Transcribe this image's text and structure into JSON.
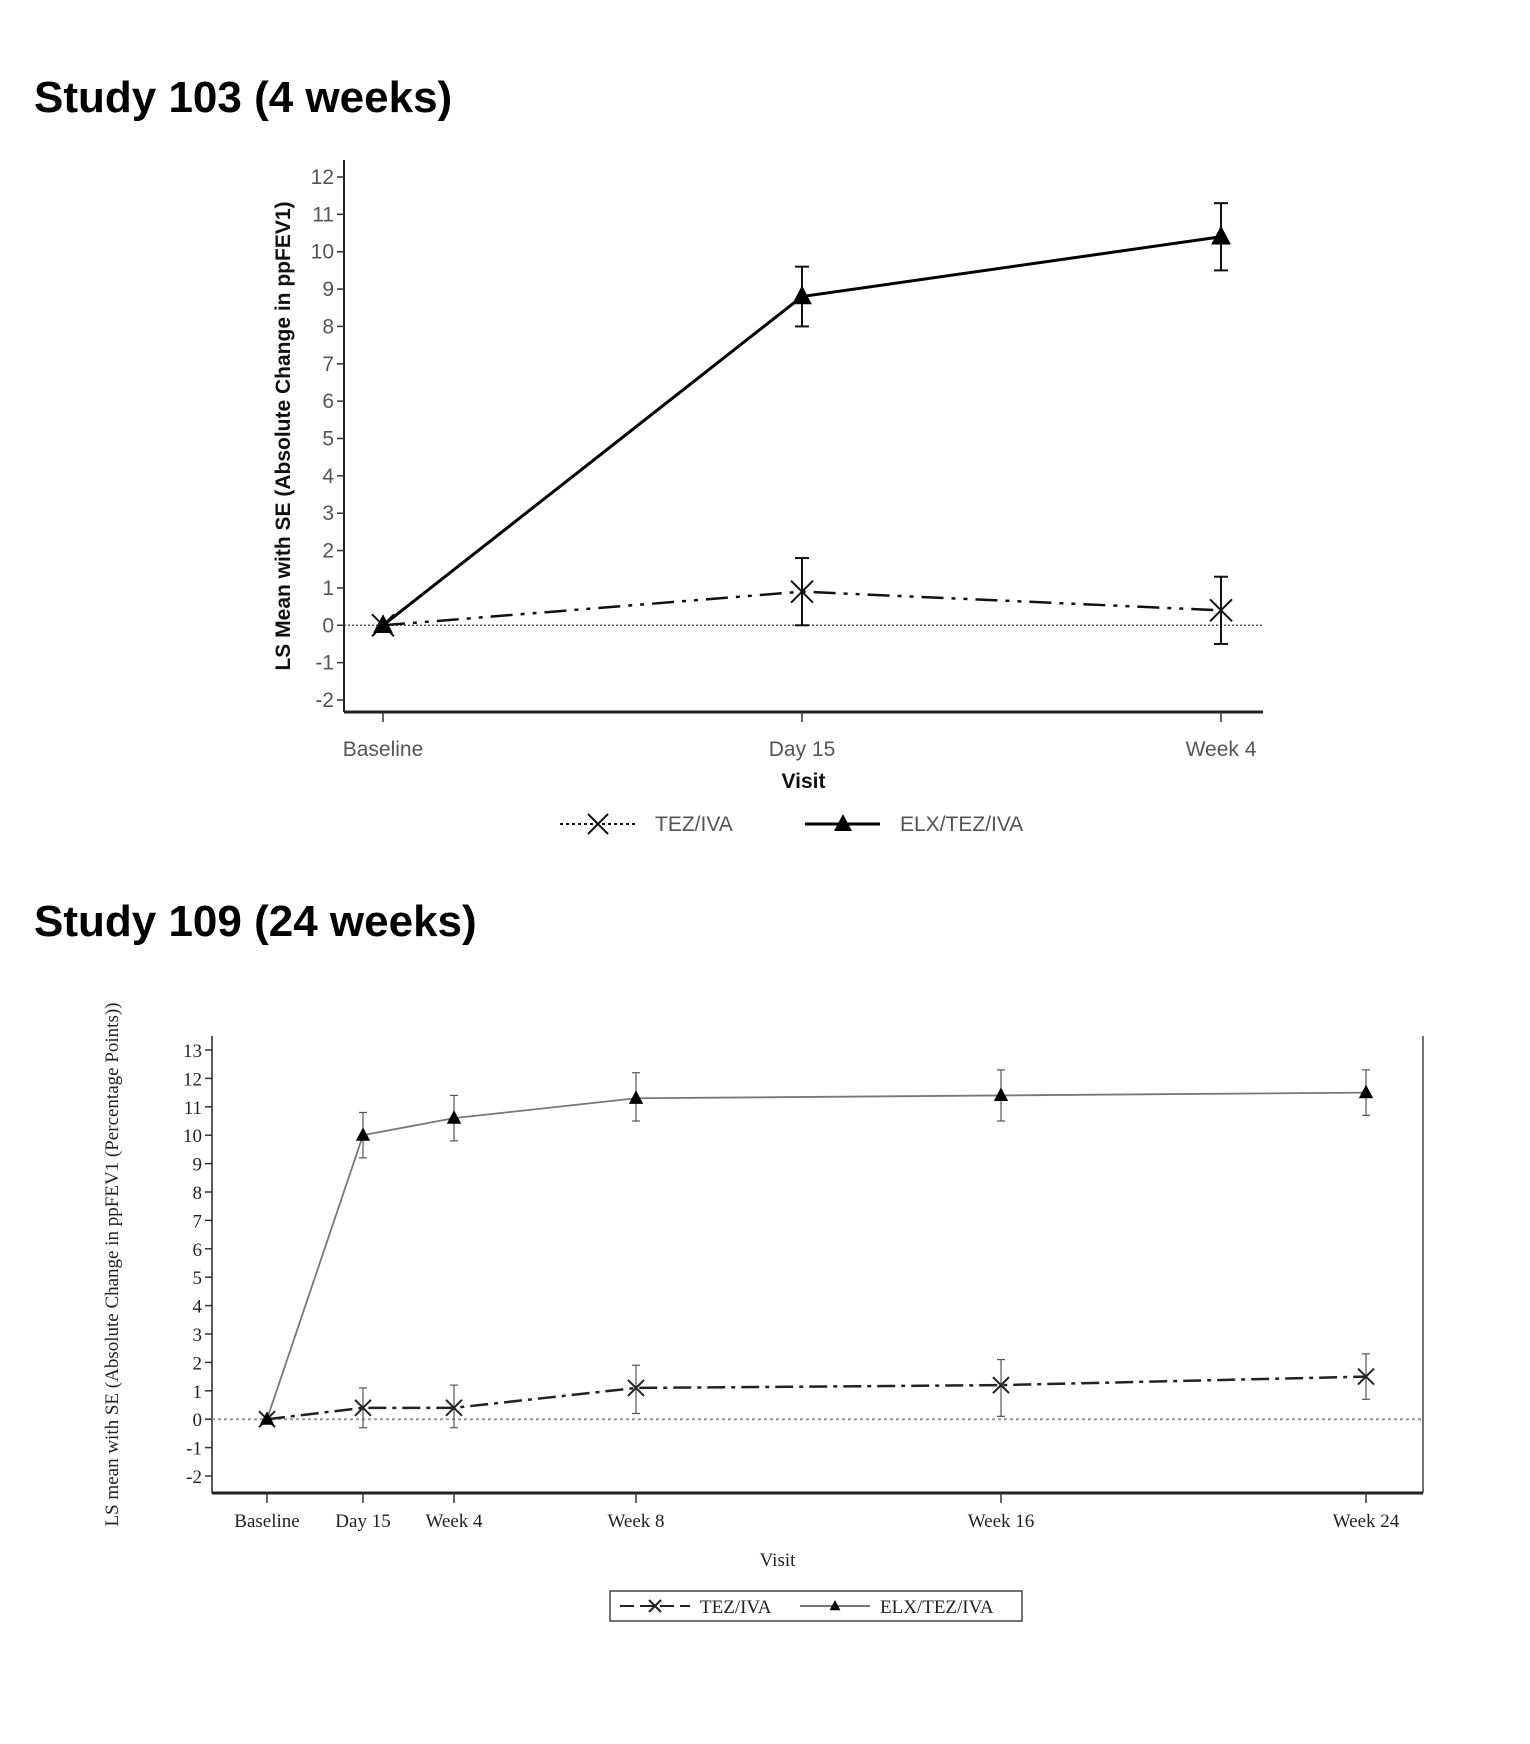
{
  "chart_data": [
    {
      "type": "line",
      "title": "Study 103 (4 weeks)",
      "xlabel": "Visit",
      "ylabel": "LS Mean with SE (Absolute Change in ppFEV1)",
      "categories": [
        "Baseline",
        "Day 15",
        "Week 4"
      ],
      "ylim": [
        -2,
        12
      ],
      "yticks": [
        -2,
        -1,
        0,
        1,
        2,
        3,
        4,
        5,
        6,
        7,
        8,
        9,
        10,
        11,
        12
      ],
      "reference_line": 0,
      "grid": false,
      "legend_placement": "bottom",
      "series": [
        {
          "name": "TEZ/IVA",
          "marker": "x",
          "line": "dash-dot-dot",
          "color": "#111111",
          "values": [
            0,
            0.9,
            0.4
          ],
          "se_low": [
            0,
            0.0,
            -0.5
          ],
          "se_high": [
            0,
            1.8,
            1.3
          ]
        },
        {
          "name": "ELX/TEZ/IVA",
          "marker": "triangle",
          "line": "solid",
          "color": "#000000",
          "values": [
            0,
            8.8,
            10.4
          ],
          "se_low": [
            0,
            8.0,
            9.5
          ],
          "se_high": [
            0,
            9.6,
            11.3
          ]
        }
      ]
    },
    {
      "type": "line",
      "title": "Study 109 (24 weeks)",
      "xlabel": "Visit",
      "ylabel": "LS mean with SE (Absolute Change in ppFEV1 (Percentage Points))",
      "categories": [
        "Baseline",
        "Day 15",
        "Week 4",
        "Week 8",
        "Week 16",
        "Week 24"
      ],
      "ylim": [
        -2,
        13
      ],
      "yticks": [
        -2,
        -1,
        0,
        1,
        2,
        3,
        4,
        5,
        6,
        7,
        8,
        9,
        10,
        11,
        12,
        13
      ],
      "reference_line": 0,
      "grid": false,
      "legend_placement": "bottom",
      "series": [
        {
          "name": "TEZ/IVA",
          "marker": "x",
          "line": "dash-dot",
          "color": "#222222",
          "values": [
            0,
            0.4,
            0.4,
            1.1,
            1.2,
            1.5
          ],
          "se_low": [
            0,
            -0.3,
            -0.3,
            0.2,
            0.1,
            0.7
          ],
          "se_high": [
            0,
            1.1,
            1.2,
            1.9,
            2.1,
            2.3
          ]
        },
        {
          "name": "ELX/TEZ/IVA",
          "marker": "triangle",
          "line": "solid",
          "color": "#777777",
          "values": [
            0,
            10.0,
            10.6,
            11.3,
            11.4,
            11.5
          ],
          "se_low": [
            0,
            9.2,
            9.8,
            10.5,
            10.5,
            10.7
          ],
          "se_high": [
            0,
            10.8,
            11.4,
            12.2,
            12.3,
            12.3
          ]
        }
      ]
    }
  ]
}
